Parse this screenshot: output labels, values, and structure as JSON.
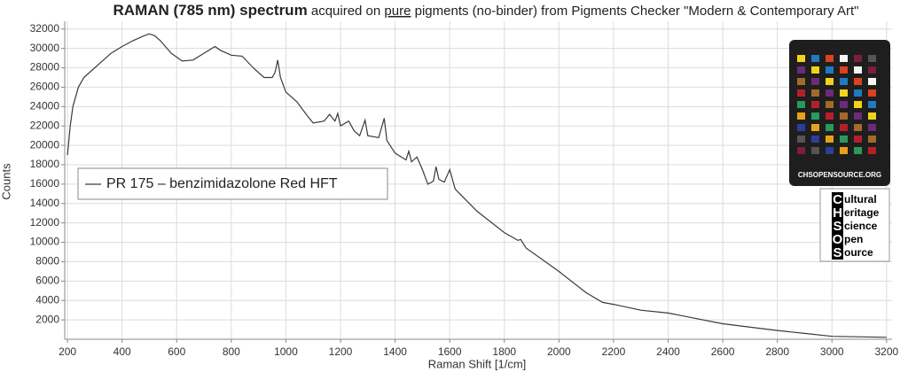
{
  "chart_data": {
    "type": "line",
    "title": {
      "bold": "RAMAN (785 nm) spectrum",
      "text1": " acquired on ",
      "underlined": "pure",
      "text2": " pigments (no-binder) from Pigments Checker \"Modern & Contemporary Art\""
    },
    "xlabel": "Raman Shift [1/cm]",
    "ylabel": "Counts",
    "xlim": [
      190,
      3220
    ],
    "ylim": [
      0,
      32800
    ],
    "xticks": [
      200,
      400,
      600,
      800,
      1000,
      1200,
      1400,
      1600,
      1800,
      2000,
      2200,
      2400,
      2600,
      2800,
      3000,
      3200
    ],
    "yticks": [
      2000,
      4000,
      6000,
      8000,
      10000,
      12000,
      14000,
      16000,
      18000,
      20000,
      22000,
      24000,
      26000,
      28000,
      30000,
      32000
    ],
    "grid": true,
    "x": [
      200,
      210,
      220,
      240,
      260,
      300,
      320,
      360,
      400,
      440,
      480,
      500,
      520,
      540,
      580,
      620,
      660,
      700,
      740,
      760,
      800,
      840,
      880,
      920,
      950,
      960,
      970,
      980,
      1000,
      1040,
      1080,
      1100,
      1140,
      1160,
      1180,
      1190,
      1200,
      1230,
      1250,
      1270,
      1290,
      1300,
      1340,
      1360,
      1370,
      1400,
      1440,
      1450,
      1460,
      1480,
      1500,
      1520,
      1540,
      1550,
      1560,
      1580,
      1600,
      1620,
      1700,
      1800,
      1850,
      1860,
      1880,
      2000,
      2100,
      2160,
      2200,
      2300,
      2400,
      2600,
      2800,
      2900,
      3000,
      3200
    ],
    "series": [
      {
        "name": "PR 175 – benzimidazolone Red HFT",
        "color": "#3a3a3a",
        "values": [
          19000,
          22000,
          24000,
          26000,
          27000,
          28000,
          28500,
          29500,
          30200,
          30800,
          31300,
          31500,
          31300,
          30800,
          29500,
          28700,
          28800,
          29500,
          30200,
          29800,
          29300,
          29200,
          28000,
          27000,
          27000,
          27500,
          28800,
          27000,
          25500,
          24500,
          23000,
          22300,
          22500,
          23200,
          22500,
          23300,
          22000,
          22500,
          21500,
          21000,
          22600,
          21000,
          20800,
          22800,
          20500,
          19200,
          18500,
          19400,
          18300,
          18800,
          17500,
          16000,
          16300,
          17800,
          16500,
          16200,
          17500,
          15500,
          13200,
          11000,
          10200,
          10300,
          9400,
          7000,
          4800,
          3800,
          3600,
          3000,
          2700,
          1600,
          900,
          600,
          300,
          200
        ]
      }
    ],
    "legend": "upper left"
  },
  "card_label": "CHSOPENSOURCE.ORG",
  "logo": {
    "letters": [
      "C",
      "H",
      "S",
      "O",
      "S"
    ],
    "words": [
      "ultural",
      "eritage",
      "cience",
      "pen",
      "ource"
    ]
  }
}
